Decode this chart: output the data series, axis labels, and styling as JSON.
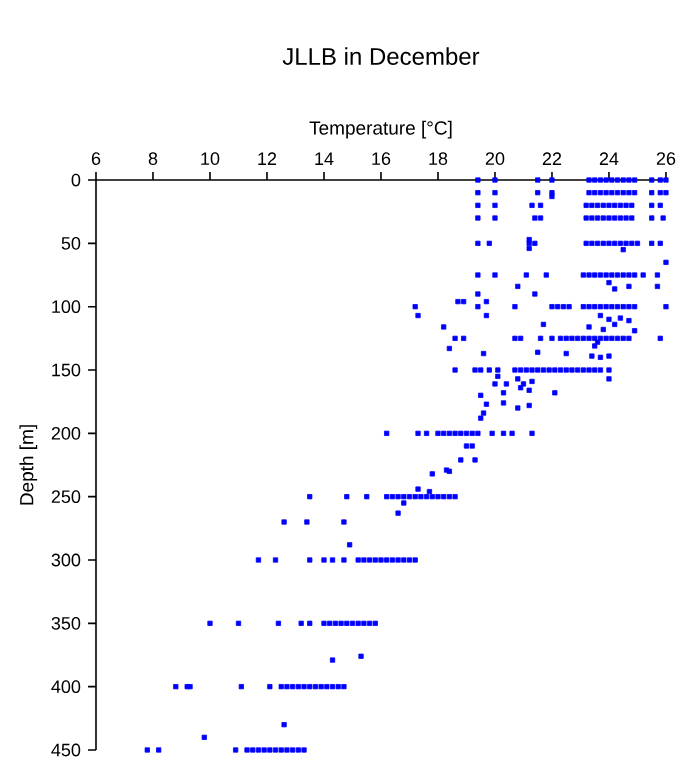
{
  "chart_data": {
    "type": "scatter",
    "title": "JLLB in December",
    "xlabel": "Temperature [°C]",
    "ylabel": "Depth [m]",
    "xlim": [
      6,
      26
    ],
    "xticks": [
      6,
      8,
      10,
      12,
      14,
      16,
      18,
      20,
      22,
      24,
      26
    ],
    "ylim": [
      450,
      0
    ],
    "yticks": [
      0,
      50,
      100,
      150,
      200,
      250,
      300,
      350,
      400,
      450
    ],
    "grid": false,
    "marker": "square",
    "series": [
      {
        "color": "#0000ff",
        "x": [
          19.4,
          20.0,
          21.5,
          22.0,
          23.3,
          23.5,
          23.7,
          23.9,
          24.1,
          24.3,
          24.5,
          24.7,
          24.9,
          25.5,
          25.8,
          26.0,
          19.4,
          20.0,
          21.5,
          22.0,
          23.3,
          23.5,
          23.7,
          23.9,
          24.1,
          24.3,
          24.5,
          24.7,
          24.9,
          25.5,
          25.8,
          26.0,
          22.0,
          19.4,
          20.0,
          21.3,
          21.6,
          23.2,
          23.4,
          23.6,
          23.8,
          24.0,
          24.2,
          24.4,
          24.6,
          24.8,
          25.5,
          25.8,
          19.4,
          20.0,
          21.4,
          21.6,
          23.2,
          23.4,
          23.6,
          23.8,
          24.0,
          24.2,
          24.4,
          24.6,
          24.8,
          25.5,
          25.9,
          19.4,
          19.8,
          21.2,
          21.4,
          23.2,
          23.4,
          23.6,
          23.8,
          24.0,
          24.2,
          24.4,
          24.6,
          24.8,
          25.0,
          25.5,
          25.8,
          21.2,
          21.2,
          24.5,
          26.0,
          19.4,
          20.0,
          21.1,
          21.8,
          23.1,
          23.3,
          23.5,
          23.7,
          23.9,
          24.1,
          24.3,
          24.5,
          24.7,
          24.9,
          25.2,
          25.7,
          20.8,
          21.4,
          19.4,
          24.0,
          24.7,
          25.7,
          24.2,
          18.7,
          18.9,
          19.7,
          17.2,
          19.4,
          20.7,
          22.0,
          22.2,
          22.4,
          22.6,
          23.1,
          23.3,
          23.5,
          23.7,
          23.9,
          24.1,
          24.3,
          24.5,
          24.7,
          24.9,
          26.0,
          17.3,
          19.7,
          23.7,
          24.0,
          24.4,
          24.7,
          24.2,
          21.7,
          18.2,
          23.3,
          23.8,
          24.9,
          18.6,
          18.9,
          20.7,
          20.9,
          21.6,
          22.0,
          22.3,
          22.5,
          22.7,
          22.9,
          23.1,
          23.3,
          23.5,
          23.7,
          23.9,
          24.1,
          24.3,
          24.5,
          24.7,
          25.8,
          23.6,
          23.5,
          18.4,
          21.5,
          22.5,
          19.6,
          23.4,
          23.7,
          24.0,
          18.6,
          19.3,
          19.5,
          19.8,
          20.1,
          20.7,
          20.9,
          21.1,
          21.3,
          21.5,
          21.7,
          21.9,
          22.1,
          22.3,
          22.5,
          22.7,
          22.9,
          23.1,
          23.3,
          23.5,
          23.7,
          24.0,
          20.1,
          20.8,
          24.0,
          21.0,
          21.3,
          20.0,
          20.4,
          20.9,
          21.2,
          22.1,
          20.3,
          19.5,
          20.3,
          20.8,
          21.2,
          19.7,
          19.6,
          19.5,
          16.2,
          17.3,
          17.6,
          18.0,
          18.2,
          18.4,
          18.6,
          18.8,
          19.0,
          19.2,
          19.4,
          19.9,
          20.3,
          20.6,
          21.3,
          19.0,
          19.2,
          18.8,
          19.3,
          17.8,
          18.3,
          18.4,
          17.3,
          17.7,
          13.5,
          14.8,
          15.5,
          16.2,
          16.4,
          16.6,
          16.8,
          17.0,
          17.2,
          17.4,
          17.6,
          17.8,
          18.0,
          18.2,
          18.4,
          18.6,
          16.8,
          16.6,
          12.6,
          13.4,
          14.7,
          14.9,
          11.7,
          12.3,
          13.5,
          14.0,
          14.3,
          14.7,
          15.2,
          15.4,
          15.6,
          15.8,
          16.0,
          16.2,
          16.4,
          16.6,
          16.8,
          17.0,
          17.2,
          10.0,
          11.0,
          12.4,
          13.2,
          13.5,
          14.0,
          14.2,
          14.4,
          14.6,
          14.8,
          15.0,
          15.2,
          15.4,
          15.6,
          15.8,
          14.3,
          15.3,
          8.8,
          9.2,
          9.3,
          11.1,
          12.1,
          12.5,
          12.7,
          12.9,
          13.1,
          13.3,
          13.5,
          13.7,
          13.9,
          14.1,
          14.3,
          14.5,
          14.7,
          12.6,
          9.8,
          7.8,
          8.2,
          10.9,
          11.3,
          11.5,
          11.7,
          11.9,
          12.1,
          12.3,
          12.5,
          12.7,
          12.9,
          13.1,
          13.3
        ],
        "values": [
          0,
          0,
          0,
          0,
          0,
          0,
          0,
          0,
          0,
          0,
          0,
          0,
          0,
          0,
          0,
          0,
          10,
          10,
          10,
          10,
          10,
          10,
          10,
          10,
          10,
          10,
          10,
          10,
          10,
          10,
          10,
          10,
          13,
          20,
          20,
          20,
          20,
          20,
          20,
          20,
          20,
          20,
          20,
          20,
          20,
          20,
          20,
          20,
          30,
          30,
          30,
          30,
          30,
          30,
          30,
          30,
          30,
          30,
          30,
          30,
          30,
          30,
          30,
          50,
          50,
          50,
          50,
          50,
          50,
          50,
          50,
          50,
          50,
          50,
          50,
          50,
          50,
          50,
          50,
          47,
          54,
          55,
          65,
          75,
          75,
          75,
          75,
          75,
          75,
          75,
          75,
          75,
          75,
          75,
          75,
          75,
          75,
          75,
          75,
          84,
          90,
          90,
          81,
          84,
          84,
          86,
          96,
          96,
          96,
          100,
          100,
          100,
          100,
          100,
          100,
          100,
          100,
          100,
          100,
          100,
          100,
          100,
          100,
          100,
          100,
          100,
          100,
          107,
          107,
          107,
          110,
          109,
          111,
          114,
          114,
          116,
          116,
          118,
          119,
          125,
          125,
          125,
          125,
          125,
          125,
          125,
          125,
          125,
          125,
          125,
          125,
          125,
          125,
          125,
          125,
          125,
          125,
          125,
          125,
          128,
          131,
          133,
          136,
          137,
          137,
          139,
          140,
          139,
          150,
          150,
          150,
          150,
          150,
          150,
          150,
          150,
          150,
          150,
          150,
          150,
          150,
          150,
          150,
          150,
          150,
          150,
          150,
          150,
          150,
          150,
          155,
          157,
          157,
          161,
          159,
          161,
          161,
          164,
          166,
          168,
          168,
          170,
          176,
          180,
          178,
          177,
          184,
          188,
          200,
          200,
          200,
          200,
          200,
          200,
          200,
          200,
          200,
          200,
          200,
          200,
          200,
          200,
          200,
          210,
          210,
          221,
          221,
          232,
          229,
          230,
          244,
          246,
          250,
          250,
          250,
          250,
          250,
          250,
          250,
          250,
          250,
          250,
          250,
          250,
          250,
          250,
          250,
          250,
          255,
          263,
          270,
          270,
          270,
          288,
          300,
          300,
          300,
          300,
          300,
          300,
          300,
          300,
          300,
          300,
          300,
          300,
          300,
          300,
          300,
          300,
          300,
          350,
          350,
          350,
          350,
          350,
          350,
          350,
          350,
          350,
          350,
          350,
          350,
          350,
          350,
          350,
          379,
          376,
          400,
          400,
          400,
          400,
          400,
          400,
          400,
          400,
          400,
          400,
          400,
          400,
          400,
          400,
          400,
          400,
          400,
          430,
          440,
          450,
          450,
          450,
          450,
          450,
          450,
          450,
          450,
          450,
          450,
          450,
          450,
          450,
          450
        ]
      }
    ]
  }
}
